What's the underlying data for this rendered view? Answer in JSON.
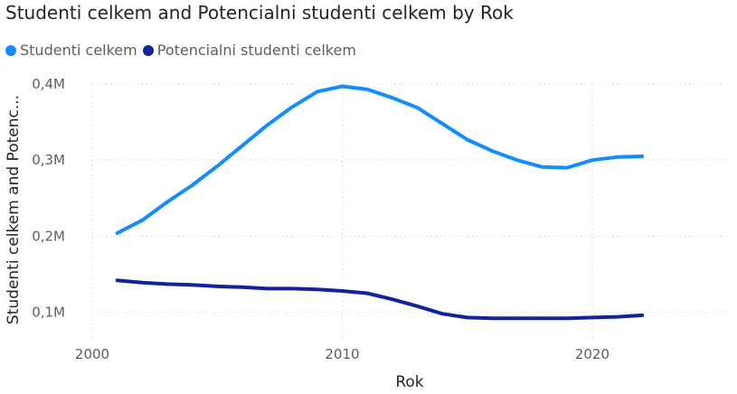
{
  "chart_data": {
    "type": "line",
    "title": "Studenti celkem and Potencialni studenti celkem by Rok",
    "xlabel": "Rok",
    "ylabel": "Studenti celkem and Potenc...",
    "x": [
      2001,
      2002,
      2003,
      2004,
      2005,
      2006,
      2007,
      2008,
      2009,
      2010,
      2011,
      2012,
      2013,
      2014,
      2015,
      2016,
      2017,
      2018,
      2019,
      2020,
      2021,
      2022
    ],
    "series": [
      {
        "name": "Studenti celkem",
        "color": "#118dff",
        "values": [
          0.204,
          0.221,
          0.245,
          0.267,
          0.292,
          0.319,
          0.346,
          0.37,
          0.39,
          0.397,
          0.393,
          0.382,
          0.369,
          0.348,
          0.327,
          0.312,
          0.3,
          0.291,
          0.29,
          0.3,
          0.304,
          0.305
        ]
      },
      {
        "name": "Potencialni studenti celkem",
        "color": "#12239e",
        "values": [
          0.142,
          0.139,
          0.137,
          0.136,
          0.134,
          0.133,
          0.131,
          0.131,
          0.13,
          0.128,
          0.125,
          0.117,
          0.108,
          0.098,
          0.093,
          0.092,
          0.092,
          0.092,
          0.092,
          0.093,
          0.094,
          0.096
        ]
      }
    ],
    "yticks": [
      "0,1M",
      "0,2M",
      "0,3M",
      "0,4M"
    ],
    "ytick_values": [
      0.1,
      0.2,
      0.3,
      0.4
    ],
    "xticks": [
      "2000",
      "2010",
      "2020"
    ],
    "xtick_values": [
      2000,
      2010,
      2020
    ],
    "xlim": [
      2000,
      2025.5
    ],
    "ylim": [
      0.065,
      0.4
    ],
    "grid": true,
    "legend": "top-left"
  }
}
